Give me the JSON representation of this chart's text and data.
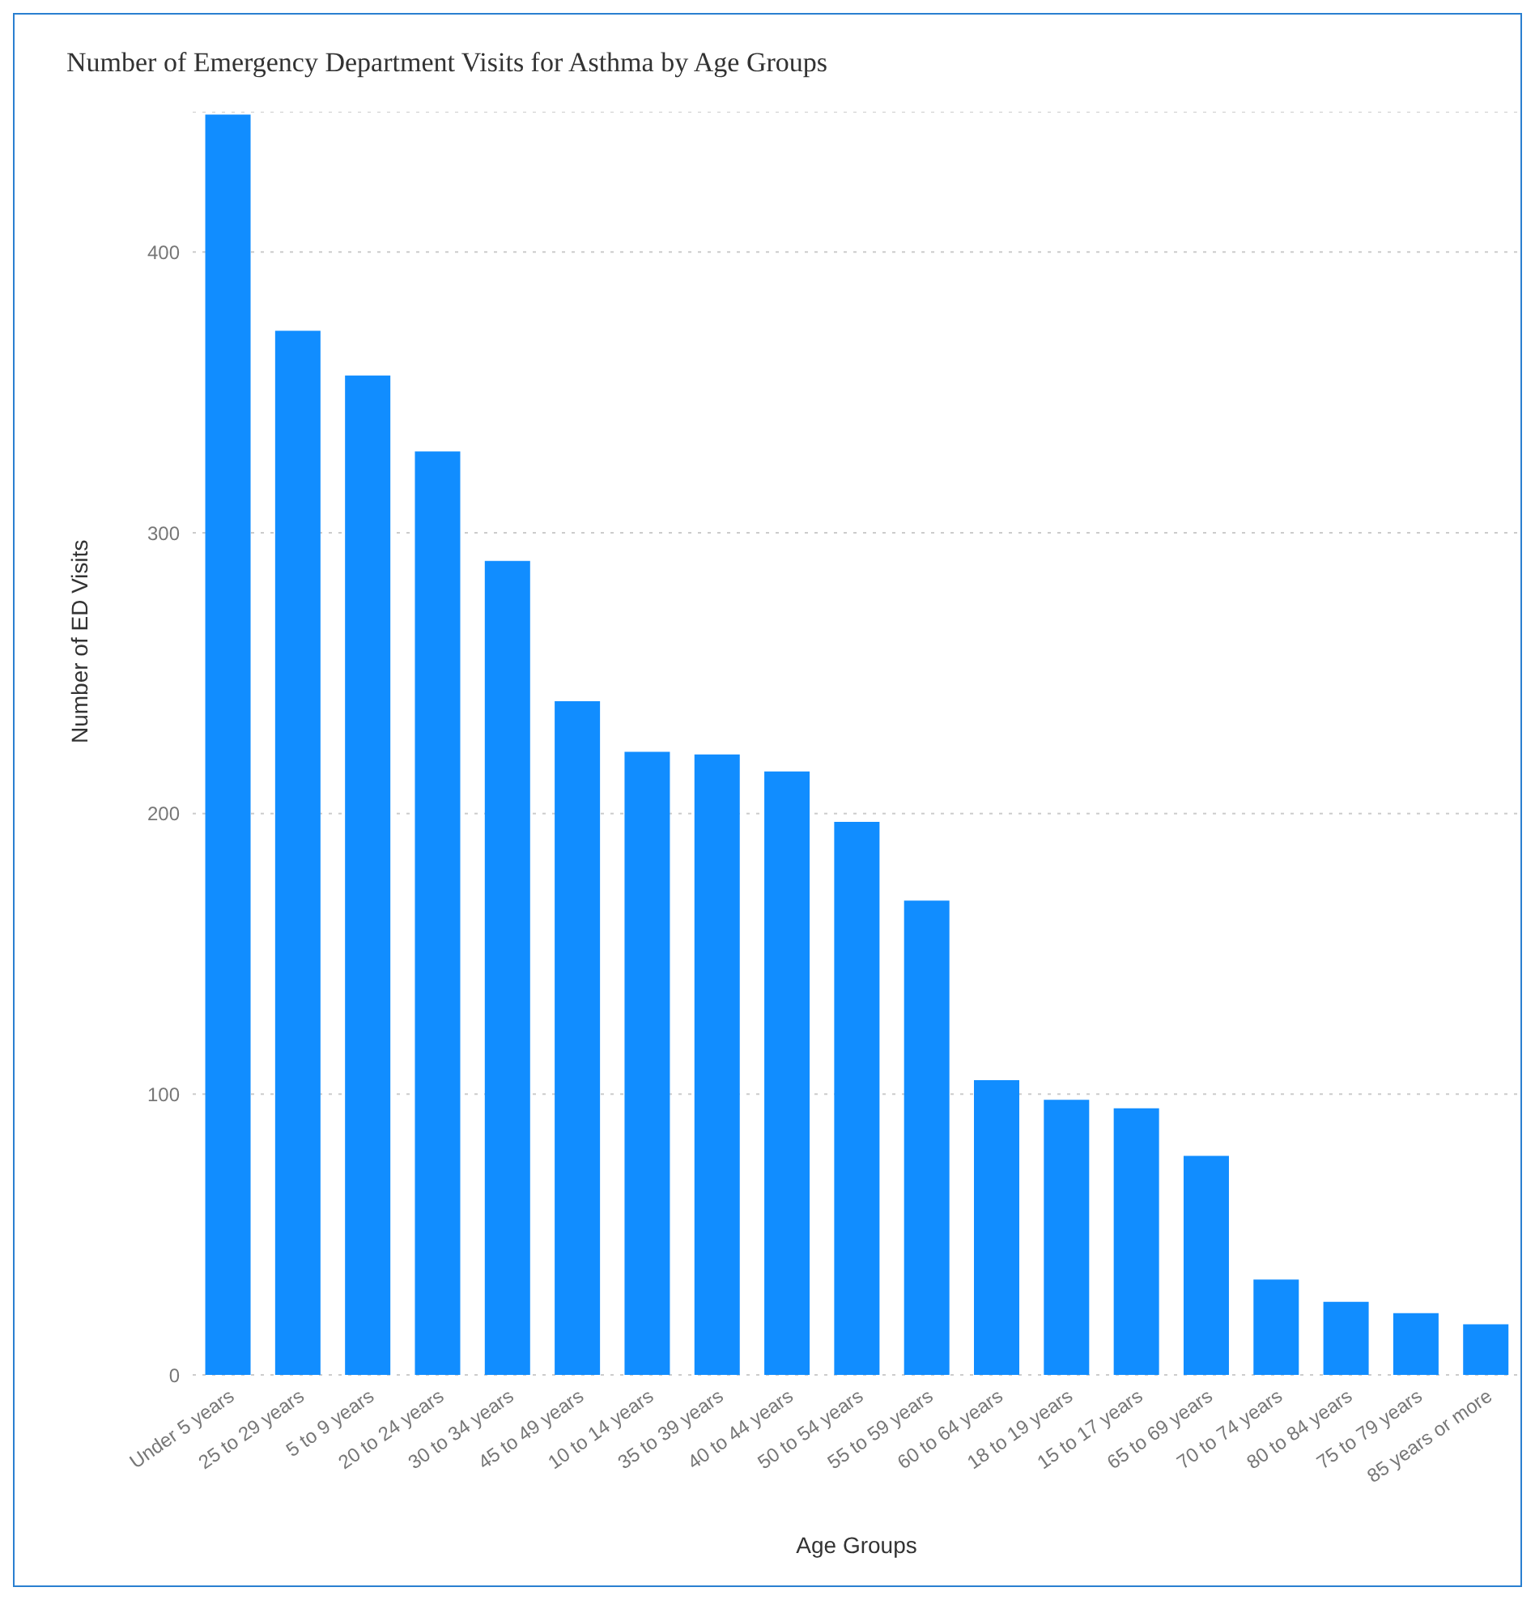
{
  "chart_data": {
    "type": "bar",
    "title": "Number of Emergency Department Visits for Asthma by Age Groups",
    "xlabel": "Age Groups",
    "ylabel": "Number of ED Visits",
    "categories": [
      "Under 5 years",
      "25 to 29 years",
      "5 to 9 years",
      "20 to 24 years",
      "30 to 34 years",
      "45 to 49 years",
      "10 to 14 years",
      "35 to 39 years",
      "40 to 44 years",
      "50 to 54 years",
      "55 to 59 years",
      "60 to 64 years",
      "18 to 19 years",
      "15 to 17 years",
      "65 to 69 years",
      "70 to 74 years",
      "80 to 84 years",
      "75 to 79 years",
      "85 years or more"
    ],
    "values": [
      449,
      372,
      356,
      329,
      290,
      240,
      222,
      221,
      215,
      197,
      169,
      105,
      98,
      95,
      78,
      34,
      26,
      22,
      18
    ],
    "color": "#118dff",
    "ylim": [
      0,
      450
    ],
    "yticks": [
      0,
      100,
      200,
      300,
      400
    ],
    "grid": "y"
  }
}
